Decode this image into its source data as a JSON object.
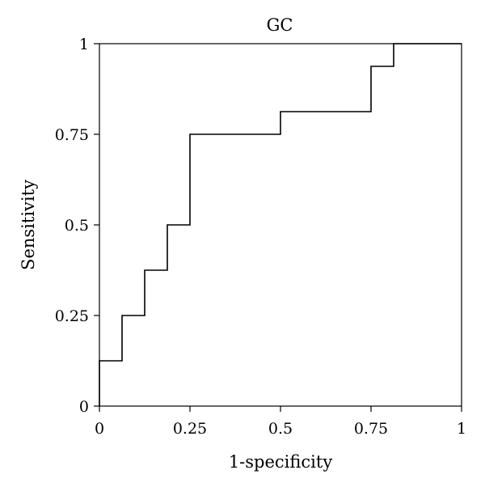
{
  "chart_data": {
    "type": "line",
    "title": "GC",
    "xlabel": "1-specificity",
    "ylabel": "Sensitivity",
    "xlim": [
      0,
      1
    ],
    "ylim": [
      0,
      1
    ],
    "xticks": [
      0,
      0.25,
      0.5,
      0.75,
      1
    ],
    "yticks": [
      0,
      0.25,
      0.5,
      0.75,
      1
    ],
    "xtick_labels": [
      "0",
      "0.25",
      "0.5",
      "0.75",
      "1"
    ],
    "ytick_labels": [
      "0",
      "0.25",
      "0.5",
      "0.75",
      "1"
    ],
    "grid": false,
    "legend": "none",
    "line_color": "#000000",
    "series": [
      {
        "style": "step",
        "x": [
          0,
          0,
          0.0625,
          0.0625,
          0.125,
          0.125,
          0.1875,
          0.1875,
          0.25,
          0.25,
          0.5,
          0.5,
          0.75,
          0.75,
          0.8125,
          0.8125,
          1
        ],
        "y": [
          0,
          0.125,
          0.125,
          0.25,
          0.25,
          0.375,
          0.375,
          0.5,
          0.5,
          0.75,
          0.75,
          0.8125,
          0.8125,
          0.9375,
          0.9375,
          1,
          1
        ]
      }
    ]
  }
}
